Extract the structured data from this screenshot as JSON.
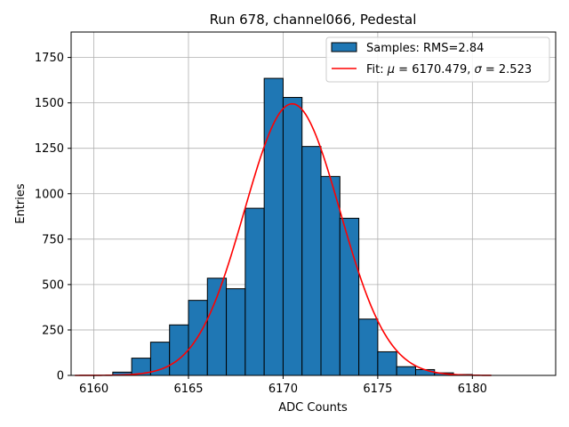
{
  "chart_data": {
    "type": "bar",
    "title": "Run 678, channel066, Pedestal",
    "xlabel": "ADC Counts",
    "ylabel": "Entries",
    "xlim": [
      6158.8,
      6184.4
    ],
    "ylim": [
      0,
      1890
    ],
    "x_ticks": [
      6160,
      6165,
      6170,
      6175,
      6180
    ],
    "y_ticks": [
      0,
      250,
      500,
      750,
      1000,
      1250,
      1500,
      1750
    ],
    "grid": true,
    "legend_position": "top-right",
    "histogram": {
      "name": "Samples: RMS=2.84",
      "bin_width": 1,
      "bin_starts": [
        6161,
        6162,
        6163,
        6164,
        6165,
        6166,
        6167,
        6168,
        6169,
        6170,
        6171,
        6172,
        6173,
        6174,
        6175,
        6176,
        6177,
        6178,
        6179
      ],
      "values": [
        18,
        95,
        183,
        278,
        413,
        535,
        477,
        920,
        1635,
        1530,
        1260,
        1095,
        865,
        310,
        130,
        48,
        32,
        14,
        5
      ],
      "color": "#1f77b4",
      "edge_color": "#000000"
    },
    "fit": {
      "name_prefix": "Fit: ",
      "name_mu": "μ",
      "name_mid": " = 6170.479, ",
      "name_sigma": "σ",
      "name_suffix": " = 2.523",
      "mu": 6170.479,
      "sigma": 2.523,
      "amplitude": 1495,
      "x_range": [
        6159,
        6181
      ],
      "color": "#ff0000"
    }
  }
}
